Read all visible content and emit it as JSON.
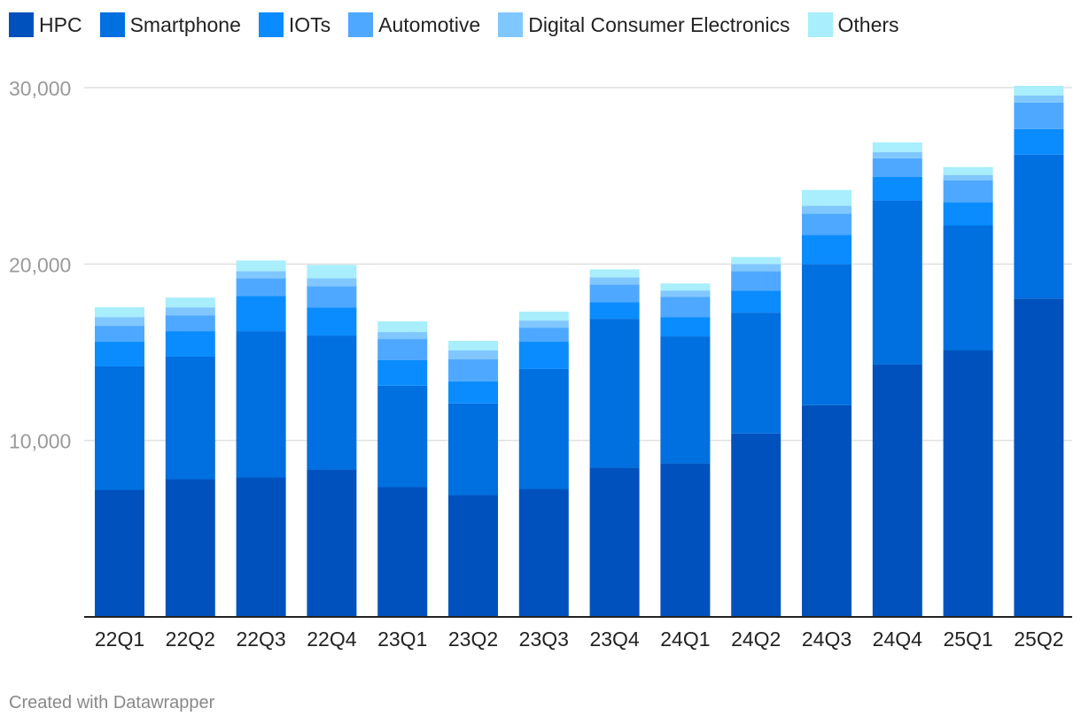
{
  "chart_data": {
    "type": "bar",
    "stacked": true,
    "title": "",
    "xlabel": "",
    "ylabel": "",
    "ylim": [
      0,
      30000
    ],
    "yticks": [
      10000,
      20000,
      30000
    ],
    "ytick_labels": [
      "10,000",
      "20,000",
      "30,000"
    ],
    "grid": true,
    "legend_position": "top-left",
    "categories": [
      "22Q1",
      "22Q2",
      "22Q3",
      "22Q4",
      "23Q1",
      "23Q2",
      "23Q3",
      "23Q4",
      "24Q1",
      "24Q2",
      "24Q3",
      "24Q4",
      "25Q1",
      "25Q2"
    ],
    "series": [
      {
        "name": "HPC",
        "color": "#0051bd",
        "values": [
          7200,
          7800,
          7900,
          8350,
          7350,
          6900,
          7250,
          8450,
          8700,
          10400,
          12000,
          14300,
          15100,
          18050
        ]
      },
      {
        "name": "Smartphone",
        "color": "#006fdf",
        "values": [
          7000,
          6950,
          8300,
          7600,
          5750,
          5200,
          6800,
          8450,
          7200,
          6850,
          8000,
          9300,
          7100,
          8150
        ]
      },
      {
        "name": "IOTs",
        "color": "#0a8cff",
        "values": [
          1400,
          1450,
          2000,
          1600,
          1450,
          1250,
          1550,
          950,
          1100,
          1250,
          1650,
          1350,
          1300,
          1450
        ]
      },
      {
        "name": "Automotive",
        "color": "#4fa8ff",
        "values": [
          900,
          900,
          1000,
          1200,
          1200,
          1250,
          800,
          1000,
          1150,
          1100,
          1200,
          1050,
          1250,
          1500
        ]
      },
      {
        "name": "Digital Consumer Electronics",
        "color": "#80c7ff",
        "values": [
          500,
          450,
          400,
          450,
          400,
          500,
          400,
          400,
          350,
          400,
          450,
          350,
          300,
          400
        ]
      },
      {
        "name": "Others",
        "color": "#a8eefc",
        "values": [
          550,
          550,
          600,
          750,
          600,
          550,
          500,
          450,
          400,
          400,
          900,
          550,
          450,
          550
        ]
      }
    ]
  },
  "footer": {
    "text": "Created with Datawrapper"
  }
}
